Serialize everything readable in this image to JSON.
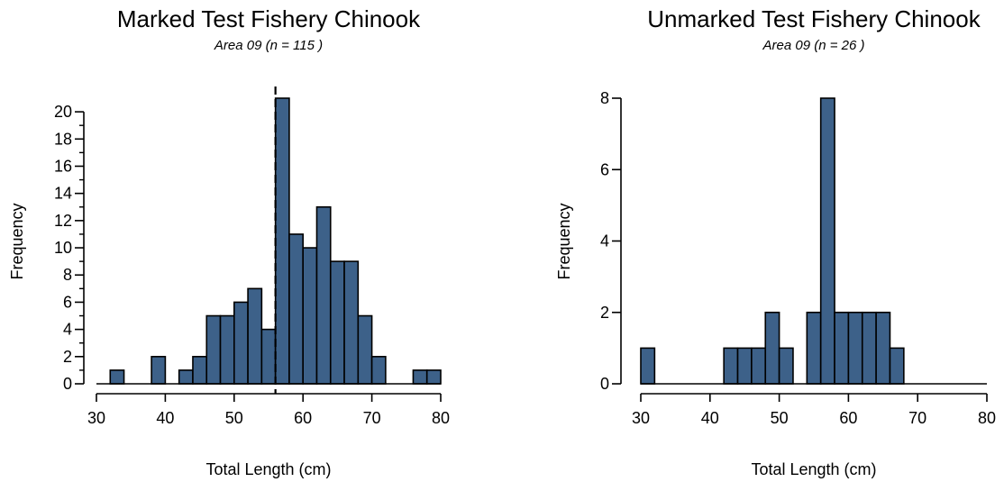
{
  "chart_data": [
    {
      "type": "bar",
      "title": "Marked Test Fishery Chinook",
      "subtitle": "Area 09  (n = 115 )",
      "xlabel": "Total Length (cm)",
      "ylabel": "Frequency",
      "xlim": [
        30,
        80
      ],
      "ylim": [
        0,
        21
      ],
      "bin_width": 2,
      "x_ticks": [
        30,
        40,
        50,
        60,
        70,
        80
      ],
      "y_ticks": [
        0,
        2,
        4,
        6,
        8,
        10,
        12,
        14,
        16,
        18,
        20
      ],
      "bars": [
        {
          "x0": 32,
          "value": 1
        },
        {
          "x0": 38,
          "value": 2
        },
        {
          "x0": 42,
          "value": 1
        },
        {
          "x0": 44,
          "value": 2
        },
        {
          "x0": 46,
          "value": 5
        },
        {
          "x0": 48,
          "value": 5
        },
        {
          "x0": 50,
          "value": 6
        },
        {
          "x0": 52,
          "value": 7
        },
        {
          "x0": 54,
          "value": 4
        },
        {
          "x0": 56,
          "value": 21
        },
        {
          "x0": 58,
          "value": 11
        },
        {
          "x0": 60,
          "value": 10
        },
        {
          "x0": 62,
          "value": 13
        },
        {
          "x0": 64,
          "value": 9
        },
        {
          "x0": 66,
          "value": 9
        },
        {
          "x0": 68,
          "value": 5
        },
        {
          "x0": 70,
          "value": 2
        },
        {
          "x0": 76,
          "value": 1
        },
        {
          "x0": 78,
          "value": 1
        }
      ],
      "reference_line_x": 56,
      "bar_color": "#3d6189",
      "bar_edge_color": "#000000"
    },
    {
      "type": "bar",
      "title": "Unmarked Test Fishery Chinook",
      "subtitle": "Area 09  (n = 26 )",
      "xlabel": "Total Length (cm)",
      "ylabel": "Frequency",
      "xlim": [
        30,
        80
      ],
      "ylim": [
        0,
        8
      ],
      "bin_width": 2,
      "x_ticks": [
        30,
        40,
        50,
        60,
        70,
        80
      ],
      "y_ticks": [
        0,
        2,
        4,
        6,
        8
      ],
      "bars": [
        {
          "x0": 30,
          "value": 1
        },
        {
          "x0": 42,
          "value": 1
        },
        {
          "x0": 44,
          "value": 1
        },
        {
          "x0": 46,
          "value": 1
        },
        {
          "x0": 48,
          "value": 2
        },
        {
          "x0": 50,
          "value": 1
        },
        {
          "x0": 54,
          "value": 2
        },
        {
          "x0": 56,
          "value": 8
        },
        {
          "x0": 58,
          "value": 2
        },
        {
          "x0": 60,
          "value": 2
        },
        {
          "x0": 62,
          "value": 2
        },
        {
          "x0": 64,
          "value": 2
        },
        {
          "x0": 66,
          "value": 1
        }
      ],
      "bar_color": "#3d6189",
      "bar_edge_color": "#000000"
    }
  ]
}
